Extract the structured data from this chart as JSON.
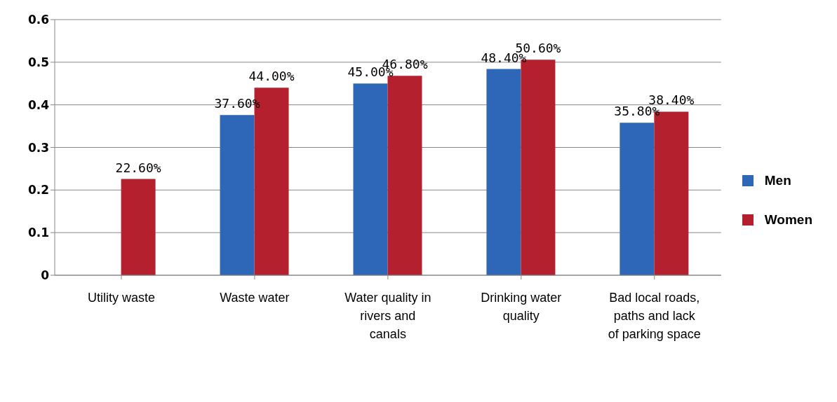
{
  "chart_data": {
    "type": "bar",
    "categories": [
      "Utility waste",
      "Waste water",
      "Water quality in rivers and canals",
      "Drinking water quality",
      "Bad local roads, paths and lack of parking space"
    ],
    "series": [
      {
        "name": "Men",
        "color": "#2e67b8",
        "values": [
          null,
          0.376,
          0.45,
          0.484,
          0.358
        ],
        "value_labels": [
          null,
          "37.60%",
          "45.00%",
          "48.40%",
          "35.80%"
        ]
      },
      {
        "name": "Women",
        "color": "#b5202e",
        "values": [
          0.226,
          0.44,
          0.468,
          0.506,
          0.384
        ],
        "value_labels": [
          "22.60%",
          "44.00%",
          "46.80%",
          "50.60%",
          "38.40%"
        ]
      }
    ],
    "ylim": [
      0,
      0.6
    ],
    "yticks": [
      0,
      0.1,
      0.2,
      0.3,
      0.4,
      0.5,
      0.6
    ],
    "grid": "y",
    "legend": "right"
  }
}
